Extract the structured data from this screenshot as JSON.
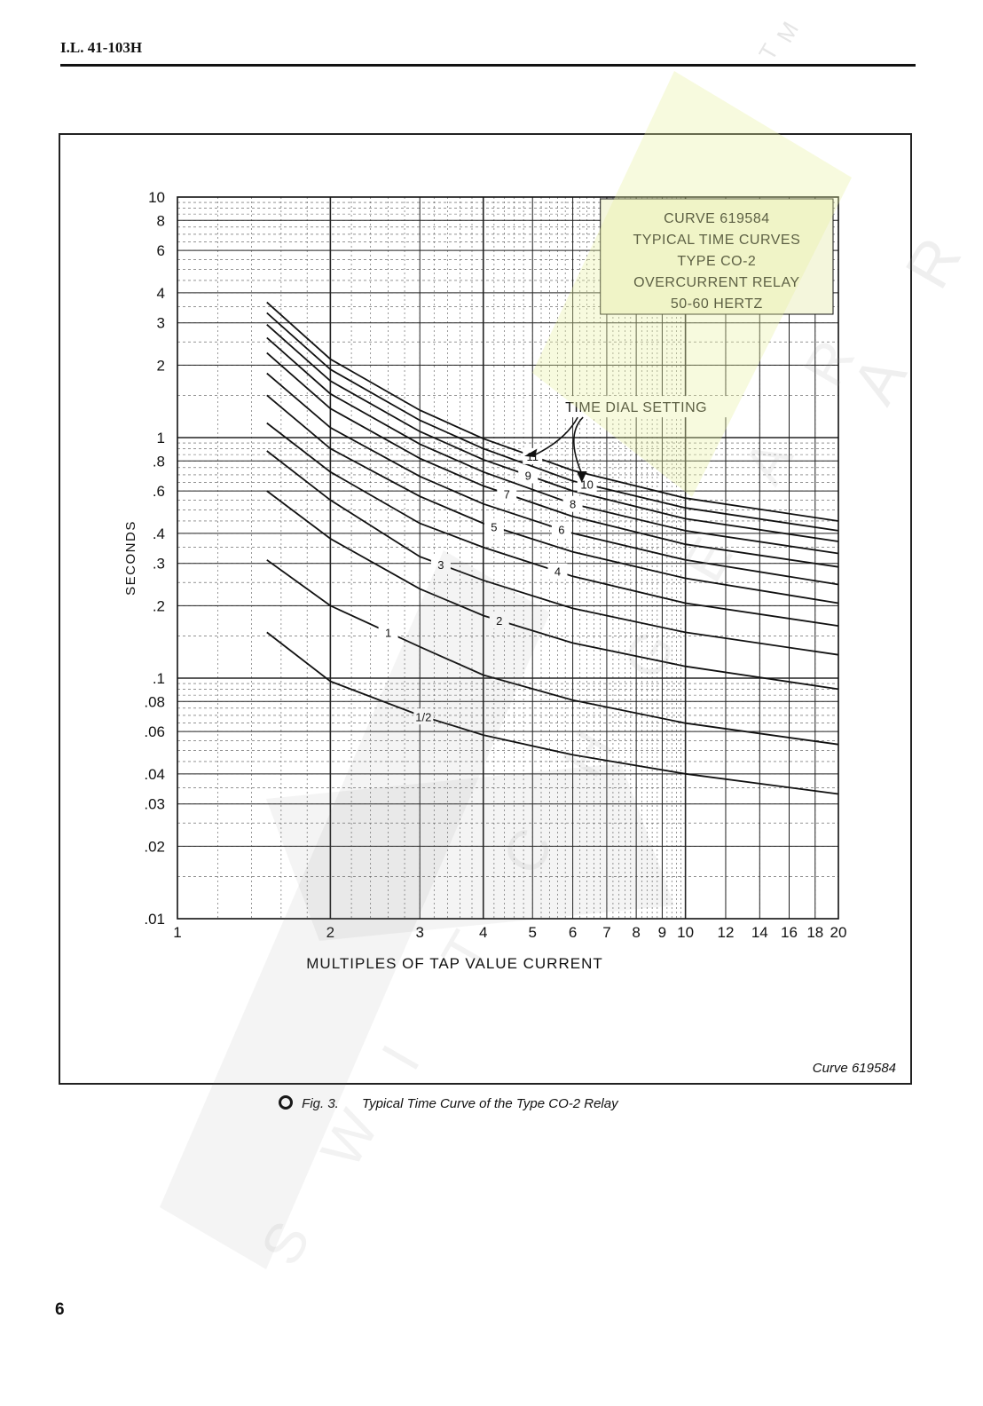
{
  "page": {
    "doc_id": "I.L. 41-103H",
    "page_number": "6"
  },
  "figure": {
    "caption_number": "Fig. 3.",
    "caption_text": "Typical Time Curve of the Type CO-2 Relay",
    "source_label": "Curve 619584"
  },
  "chart_data": {
    "type": "line",
    "title_box": [
      "CURVE 619584",
      "TYPICAL TIME CURVES",
      "TYPE CO-2",
      "OVERCURRENT RELAY",
      "50-60 HERTZ"
    ],
    "xlabel": "MULTIPLES OF TAP VALUE CURRENT",
    "ylabel": "SECONDS",
    "x_scale": "log",
    "y_scale": "log",
    "xlim": [
      1,
      20
    ],
    "ylim": [
      0.01,
      10
    ],
    "x_ticks": [
      {
        "v": 1,
        "label": "1"
      },
      {
        "v": 2,
        "label": "2"
      },
      {
        "v": 3,
        "label": "3"
      },
      {
        "v": 4,
        "label": "4"
      },
      {
        "v": 5,
        "label": "5"
      },
      {
        "v": 6,
        "label": "6"
      },
      {
        "v": 7,
        "label": "7"
      },
      {
        "v": 8,
        "label": "8"
      },
      {
        "v": 9,
        "label": "9"
      },
      {
        "v": 10,
        "label": "10"
      },
      {
        "v": 12,
        "label": "12"
      },
      {
        "v": 14,
        "label": "14"
      },
      {
        "v": 16,
        "label": "16"
      },
      {
        "v": 18,
        "label": "18"
      },
      {
        "v": 20,
        "label": "20"
      }
    ],
    "y_ticks": [
      {
        "v": 0.01,
        "label": ".01"
      },
      {
        "v": 0.02,
        "label": ".02"
      },
      {
        "v": 0.03,
        "label": ".03"
      },
      {
        "v": 0.04,
        "label": ".04"
      },
      {
        "v": 0.06,
        "label": ".06"
      },
      {
        "v": 0.08,
        "label": ".08"
      },
      {
        "v": 0.1,
        "label": ".1"
      },
      {
        "v": 0.2,
        "label": ".2"
      },
      {
        "v": 0.3,
        "label": ".3"
      },
      {
        "v": 0.4,
        "label": ".4"
      },
      {
        "v": 0.6,
        "label": ".6"
      },
      {
        "v": 0.8,
        "label": ".8"
      },
      {
        "v": 1,
        "label": "1"
      },
      {
        "v": 2,
        "label": "2"
      },
      {
        "v": 3,
        "label": "3"
      },
      {
        "v": 4,
        "label": "4"
      },
      {
        "v": 6,
        "label": "6"
      },
      {
        "v": 8,
        "label": "8"
      },
      {
        "v": 10,
        "label": "10"
      }
    ],
    "annotation": "TIME DIAL SETTING",
    "grid": true,
    "series": [
      {
        "name": "1/2",
        "label_at": 3.05,
        "points": [
          [
            1.5,
            0.155
          ],
          [
            2,
            0.097
          ],
          [
            3,
            0.07
          ],
          [
            4,
            0.058
          ],
          [
            6,
            0.048
          ],
          [
            10,
            0.04
          ],
          [
            20,
            0.033
          ]
        ]
      },
      {
        "name": "1",
        "label_at": 2.6,
        "points": [
          [
            1.5,
            0.31
          ],
          [
            2,
            0.2
          ],
          [
            3,
            0.135
          ],
          [
            4,
            0.103
          ],
          [
            6,
            0.081
          ],
          [
            10,
            0.065
          ],
          [
            20,
            0.053
          ]
        ]
      },
      {
        "name": "2",
        "label_at": 4.3,
        "points": [
          [
            1.5,
            0.6
          ],
          [
            2,
            0.38
          ],
          [
            3,
            0.235
          ],
          [
            4,
            0.182
          ],
          [
            6,
            0.14
          ],
          [
            10,
            0.112
          ],
          [
            20,
            0.09
          ]
        ]
      },
      {
        "name": "3",
        "label_at": 3.3,
        "points": [
          [
            1.5,
            0.88
          ],
          [
            2,
            0.55
          ],
          [
            3,
            0.32
          ],
          [
            4,
            0.255
          ],
          [
            6,
            0.195
          ],
          [
            10,
            0.155
          ],
          [
            20,
            0.125
          ]
        ]
      },
      {
        "name": "4",
        "label_at": 5.6,
        "points": [
          [
            1.5,
            1.15
          ],
          [
            2,
            0.72
          ],
          [
            3,
            0.44
          ],
          [
            4,
            0.35
          ],
          [
            6,
            0.265
          ],
          [
            10,
            0.205
          ],
          [
            20,
            0.165
          ]
        ]
      },
      {
        "name": "5",
        "label_at": 4.2,
        "points": [
          [
            1.5,
            1.5
          ],
          [
            2,
            0.9
          ],
          [
            3,
            0.57
          ],
          [
            4,
            0.44
          ],
          [
            6,
            0.335
          ],
          [
            10,
            0.26
          ],
          [
            20,
            0.205
          ]
        ]
      },
      {
        "name": "6",
        "label_at": 5.7,
        "points": [
          [
            1.5,
            1.85
          ],
          [
            2,
            1.1
          ],
          [
            3,
            0.69
          ],
          [
            4,
            0.53
          ],
          [
            6,
            0.4
          ],
          [
            10,
            0.31
          ],
          [
            20,
            0.245
          ]
        ]
      },
      {
        "name": "7",
        "label_at": 4.45,
        "points": [
          [
            1.5,
            2.25
          ],
          [
            2,
            1.32
          ],
          [
            3,
            0.82
          ],
          [
            4,
            0.63
          ],
          [
            6,
            0.47
          ],
          [
            10,
            0.36
          ],
          [
            20,
            0.29
          ]
        ]
      },
      {
        "name": "8",
        "label_at": 6.0,
        "points": [
          [
            1.5,
            2.6
          ],
          [
            2,
            1.52
          ],
          [
            3,
            0.94
          ],
          [
            4,
            0.72
          ],
          [
            6,
            0.53
          ],
          [
            10,
            0.41
          ],
          [
            20,
            0.33
          ]
        ]
      },
      {
        "name": "9",
        "label_at": 4.9,
        "points": [
          [
            1.5,
            2.95
          ],
          [
            2,
            1.72
          ],
          [
            3,
            1.06
          ],
          [
            4,
            0.81
          ],
          [
            6,
            0.6
          ],
          [
            10,
            0.46
          ],
          [
            20,
            0.37
          ]
        ]
      },
      {
        "name": "10",
        "label_at": 6.4,
        "points": [
          [
            1.5,
            3.3
          ],
          [
            2,
            1.92
          ],
          [
            3,
            1.18
          ],
          [
            4,
            0.9
          ],
          [
            6,
            0.66
          ],
          [
            10,
            0.51
          ],
          [
            20,
            0.41
          ]
        ]
      },
      {
        "name": "11",
        "label_at": 5.0,
        "points": [
          [
            1.5,
            3.65
          ],
          [
            2,
            2.12
          ],
          [
            3,
            1.3
          ],
          [
            4,
            0.99
          ],
          [
            6,
            0.73
          ],
          [
            10,
            0.56
          ],
          [
            20,
            0.45
          ]
        ]
      }
    ]
  },
  "watermark": {
    "logo_text": [
      "N",
      "E",
      "I"
    ],
    "side_letters": [
      "T",
      "M",
      "A",
      "R"
    ],
    "diagonal_text": [
      "S",
      "W",
      "I",
      "T",
      "C",
      "H",
      "G",
      "E",
      "A",
      "R"
    ],
    "color": "#e9f2a0"
  }
}
